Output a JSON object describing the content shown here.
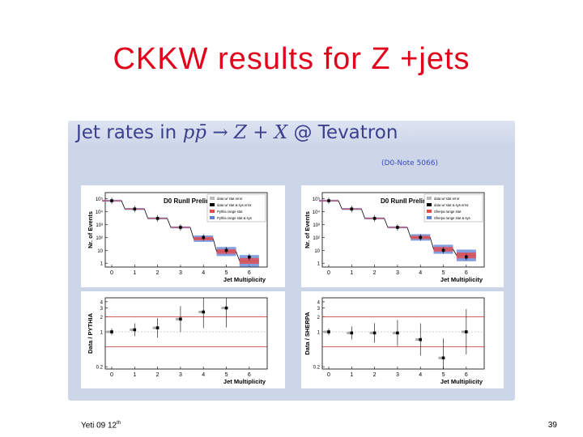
{
  "slide": {
    "title": "CKKW results for Z +jets",
    "footer_left": "Yeti 09 12",
    "footer_left_sup": "th",
    "page_number": "39"
  },
  "panel": {
    "title_prefix": "Jet rates in ",
    "title_process": "pp̄ → Z + X",
    "title_suffix": " @ Tevatron",
    "note": "(D0-Note 5066)"
  },
  "colors": {
    "title": "#e3001b",
    "panel_bg": "#cdd6e9",
    "panel_title": "#3a3f8f",
    "note": "#3a47c4",
    "stat_band": "#e84a4a",
    "stat_sys_band": "#5a7fd6",
    "ratio_line": "#c62b2b"
  },
  "chart_data": [
    {
      "type": "line",
      "panel": "top-left",
      "title": "D0 RunII Preliminary",
      "xlabel": "Jet Multiplicity",
      "ylabel": "Nr. of Events",
      "xticks": [
        "0",
        "1",
        "2",
        "3",
        "4",
        "5",
        "6"
      ],
      "yticks": [
        "1",
        "10",
        "10²",
        "10³",
        "10⁴",
        "10⁵"
      ],
      "log_y": true,
      "legend": [
        "data w/ stat error",
        "data w/ stat & sys error",
        "Pythia range stat",
        "Pythia range stat & sys"
      ],
      "legend_position": "top-right",
      "x": [
        0,
        1,
        2,
        3,
        4,
        5,
        6
      ],
      "data": [
        70000,
        16000,
        3000,
        600,
        100,
        10,
        3
      ],
      "prediction": [
        70000,
        16000,
        3000,
        600,
        80,
        8,
        1.5
      ]
    },
    {
      "type": "line",
      "panel": "top-right",
      "title": "D0 RunII Preliminary",
      "xlabel": "Jet Multiplicity",
      "ylabel": "Nr. of Events",
      "xticks": [
        "0",
        "1",
        "2",
        "3",
        "4",
        "5",
        "6"
      ],
      "yticks": [
        "1",
        "10",
        "10²",
        "10³",
        "10⁴",
        "10⁵"
      ],
      "log_y": true,
      "legend": [
        "data w/ stat error",
        "data w/ stat & sys error",
        "Sherpa range stat",
        "Sherpa range stat & sys"
      ],
      "legend_position": "top-right",
      "x": [
        0,
        1,
        2,
        3,
        4,
        5,
        6
      ],
      "data": [
        70000,
        16000,
        3000,
        600,
        100,
        10,
        3
      ],
      "prediction": [
        70000,
        16000,
        3000,
        600,
        100,
        12,
        4
      ]
    },
    {
      "type": "scatter",
      "panel": "bottom-left",
      "xlabel": "Jet Multiplicity",
      "ylabel": "Data / PYTHIA",
      "xticks": [
        "0",
        "1",
        "2",
        "3",
        "4",
        "5",
        "6"
      ],
      "yticks": [
        "0.2",
        "1",
        "2",
        "3",
        "4"
      ],
      "log_y": true,
      "x": [
        0,
        1,
        2,
        3,
        4,
        5
      ],
      "y": [
        1.0,
        1.1,
        1.2,
        1.8,
        2.5,
        3.0
      ],
      "reference_lines": [
        2.0,
        0.5
      ]
    },
    {
      "type": "scatter",
      "panel": "bottom-right",
      "xlabel": "Jet Multiplicity",
      "ylabel": "Data / SHERPA",
      "xticks": [
        "0",
        "1",
        "2",
        "3",
        "4",
        "5",
        "6"
      ],
      "yticks": [
        "0.2",
        "1",
        "2",
        "3",
        "4"
      ],
      "log_y": true,
      "x": [
        0,
        1,
        2,
        3,
        4,
        5,
        6
      ],
      "y": [
        1.0,
        0.95,
        0.95,
        0.95,
        0.7,
        0.3,
        1.0
      ],
      "reference_lines": [
        2.0,
        0.5
      ]
    }
  ]
}
